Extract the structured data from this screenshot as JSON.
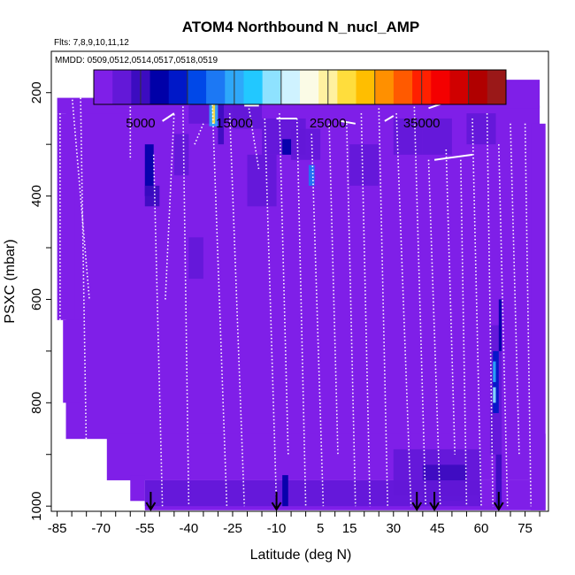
{
  "chart_data": {
    "type": "heatmap",
    "title": "ATOM4 Northbound N_nucl_AMP",
    "subtitle_flights": "Flts: 7,8,9,10,11,12",
    "subtitle_dates": "MMDD: 0509,0512,0514,0517,0518,0519",
    "xlabel": "Latitude (deg N)",
    "ylabel": "PSXC (mbar)",
    "xlim": [
      -87,
      83
    ],
    "ylim": [
      1010,
      120
    ],
    "y_reversed": true,
    "x_tick_labels": [
      "-85",
      "-70",
      "-55",
      "-40",
      "-25",
      "-10",
      "5",
      "15",
      "30",
      "45",
      "60",
      "75"
    ],
    "x_tick_values": [
      -85,
      -70,
      -55,
      -40,
      -25,
      -10,
      5,
      15,
      30,
      45,
      60,
      75
    ],
    "y_tick_labels": [
      "200",
      "400",
      "600",
      "800",
      "1000"
    ],
    "y_tick_values": [
      200,
      400,
      600,
      800,
      1000
    ],
    "colorbar": {
      "range": [
        0,
        44000
      ],
      "tick_labels": [
        "5000",
        "15000",
        "25000",
        "35000"
      ],
      "tick_values": [
        5000,
        15000,
        25000,
        35000
      ],
      "colors": [
        "#7f1fe8",
        "#6318d8",
        "#3c0cc0",
        "#0000a8",
        "#0018c8",
        "#0048e8",
        "#1c78f4",
        "#2ea8fa",
        "#22c8ff",
        "#8ee2ff",
        "#cff2ff",
        "#fbfbe6",
        "#fff1a0",
        "#ffdd3c",
        "#ffbe00",
        "#ff9000",
        "#ff5a00",
        "#ff2000",
        "#f40000",
        "#d00000",
        "#b00000",
        "#9a1818"
      ]
    },
    "background_value": 1000,
    "cells": [
      {
        "lat": [
          -65,
          40
        ],
        "p": [
          170,
          230
        ],
        "v": 1500
      },
      {
        "lat": [
          -40,
          -20
        ],
        "p": [
          200,
          260
        ],
        "v": 2200
      },
      {
        "lat": [
          -33,
          -30
        ],
        "p": [
          210,
          265
        ],
        "v": 14000
      },
      {
        "lat": [
          -32,
          -31
        ],
        "p": [
          215,
          260
        ],
        "v": 26000
      },
      {
        "lat": [
          -30,
          -28
        ],
        "p": [
          200,
          300
        ],
        "v": 4000
      },
      {
        "lat": [
          -25,
          -15
        ],
        "p": [
          220,
          270
        ],
        "v": 3000
      },
      {
        "lat": [
          -15,
          0
        ],
        "p": [
          250,
          320
        ],
        "v": 2800
      },
      {
        "lat": [
          -5,
          5
        ],
        "p": [
          270,
          330
        ],
        "v": 3500
      },
      {
        "lat": [
          -8,
          -5
        ],
        "p": [
          290,
          320
        ],
        "v": 6500
      },
      {
        "lat": [
          1,
          3
        ],
        "p": [
          340,
          380
        ],
        "v": 12000
      },
      {
        "lat": [
          -55,
          -52
        ],
        "p": [
          300,
          400
        ],
        "v": 6000
      },
      {
        "lat": [
          -55,
          -50
        ],
        "p": [
          380,
          420
        ],
        "v": 5000
      },
      {
        "lat": [
          -45,
          -40
        ],
        "p": [
          280,
          360
        ],
        "v": 3000
      },
      {
        "lat": [
          -40,
          -35
        ],
        "p": [
          480,
          560
        ],
        "v": 3500
      },
      {
        "lat": [
          -20,
          -10
        ],
        "p": [
          320,
          420
        ],
        "v": 3000
      },
      {
        "lat": [
          15,
          25
        ],
        "p": [
          300,
          380
        ],
        "v": 2500
      },
      {
        "lat": [
          30,
          40
        ],
        "p": [
          250,
          320
        ],
        "v": 2500
      },
      {
        "lat": [
          40,
          50
        ],
        "p": [
          250,
          320
        ],
        "v": 2300
      },
      {
        "lat": [
          55,
          65
        ],
        "p": [
          240,
          300
        ],
        "v": 2000
      },
      {
        "lat": [
          30,
          60
        ],
        "p": [
          890,
          980
        ],
        "v": 3200
      },
      {
        "lat": [
          40,
          55
        ],
        "p": [
          920,
          990
        ],
        "v": 4000
      },
      {
        "lat": [
          -55,
          60
        ],
        "p": [
          950,
          1000
        ],
        "v": 2200
      },
      {
        "lat": [
          -8,
          -6
        ],
        "p": [
          940,
          1000
        ],
        "v": 6000
      },
      {
        "lat": [
          63,
          67
        ],
        "p": [
          650,
          900
        ],
        "v": 3500
      },
      {
        "lat": [
          64,
          66
        ],
        "p": [
          700,
          820
        ],
        "v": 9000
      },
      {
        "lat": [
          64,
          65
        ],
        "p": [
          720,
          760
        ],
        "v": 14000
      },
      {
        "lat": [
          64,
          65
        ],
        "p": [
          770,
          800
        ],
        "v": 18000
      },
      {
        "lat": [
          65,
          67
        ],
        "p": [
          900,
          1000
        ],
        "v": 5000
      },
      {
        "lat": [
          66,
          67
        ],
        "p": [
          600,
          700
        ],
        "v": 6000
      }
    ],
    "arrows_lat": [
      -53,
      -10,
      38,
      44,
      66
    ]
  }
}
